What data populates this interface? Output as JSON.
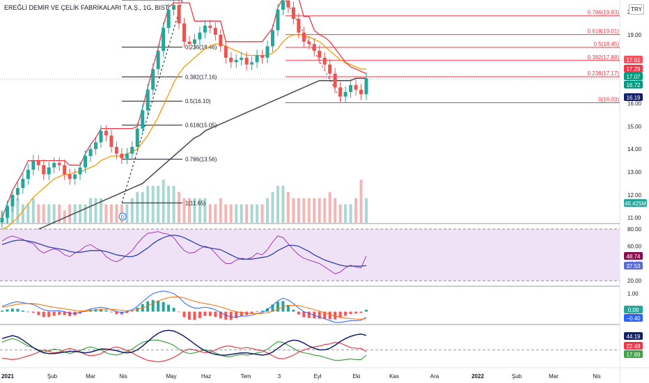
{
  "header": {
    "symbol_title": "EREĞLİ DEMİR VE ÇELİK FABRİKALARI T.A.Ş., 1G, BIST",
    "currency": "TRY"
  },
  "chart_data": {
    "type": "candlestick",
    "price_scale": {
      "ticks": [
        "20.00",
        "19.00",
        "18.00",
        "17.00",
        "16.00",
        "15.00",
        "14.00",
        "13.00",
        "12.00",
        "11.00"
      ],
      "range": [
        10.9,
        20.4
      ]
    },
    "x_axis": {
      "labels": [
        "2021",
        "Şub",
        "Mar",
        "Nis",
        "May",
        "Haz",
        "Tem",
        "3",
        "Eyl",
        "Eki",
        "Kas",
        "Ara",
        "2022",
        "Şub",
        "Mar",
        "Nis"
      ],
      "bold_labels": [
        "2021",
        "2022"
      ]
    },
    "price_badges": [
      {
        "text": "17.61",
        "color": "#f7525f"
      },
      {
        "text": "17.29",
        "color": "#f23645"
      },
      {
        "text": "17.07",
        "color": "#089981"
      },
      {
        "text": "16.72",
        "color": "#089981"
      },
      {
        "text": "16.19",
        "color": "#131f6b"
      }
    ],
    "volume_badge": {
      "text": "46.425M",
      "color": "#26a69a"
    },
    "fib_left": {
      "levels": [
        {
          "label": "0.236(18.46)",
          "value": 18.46
        },
        {
          "label": "0.382(17.16)",
          "value": 17.16
        },
        {
          "label": "0.5(16.10)",
          "value": 16.1
        },
        {
          "label": "0.618(15.05)",
          "value": 15.05
        },
        {
          "label": "0.786(13.56)",
          "value": 13.56
        },
        {
          "label": "1(11.65)",
          "value": 11.65
        }
      ],
      "top_value": 20.52,
      "color": "#131722"
    },
    "fib_right": {
      "levels": [
        {
          "label": "0.786(19.83)",
          "value": 19.83
        },
        {
          "label": "0.618(19.01)",
          "value": 19.01
        },
        {
          "label": "0.5(18.45)",
          "value": 18.45
        },
        {
          "label": "0.382(17.88)",
          "value": 17.88
        },
        {
          "label": "0.236(17.17)",
          "value": 17.17
        },
        {
          "label": "0(16.03)",
          "value": 16.03
        }
      ],
      "color": "#f23645"
    },
    "event_marker": "D",
    "rsi": {
      "ticks": [
        "80.00",
        "60.00",
        "40.00",
        "20.00"
      ],
      "range": [
        16,
        84
      ],
      "levels": [
        80,
        20
      ],
      "badges": [
        {
          "text": "48.74",
          "color": "#880e4f"
        },
        {
          "text": "37.53",
          "color": "#5b6bd6"
        }
      ],
      "line_color": "#9c27b0",
      "ma_color": "#2f3fae",
      "band_color": "#efe2f6"
    },
    "macd": {
      "ticks": [
        "1.00",
        "0.00"
      ],
      "range": [
        -0.6,
        1.3
      ],
      "badges": [
        {
          "text": "0.09",
          "color": "#26a69a"
        },
        {
          "text": "−0.40",
          "color": "#2962ff"
        }
      ],
      "macd_color": "#2962ff",
      "signal_color": "#ff6d00"
    },
    "dmi": {
      "badges": [
        {
          "text": "44.19",
          "color": "#131f6b"
        },
        {
          "text": "22.48",
          "color": "#f23645"
        },
        {
          "text": "17.89",
          "color": "#43a047"
        }
      ],
      "adx_color": "#131f6b",
      "plus_di_color": "#43a047",
      "minus_di_color": "#f23645"
    },
    "colors": {
      "up": "#26a69a",
      "down": "#ef5350",
      "ma_fast": "#ff9800",
      "ma_slow": "#434651",
      "channel": "#f23645",
      "axis_text": "#131722",
      "separator": "#b2b5be"
    },
    "series": [
      {
        "name": "close",
        "values": [
          11.0,
          11.5,
          12.0,
          12.3,
          12.7,
          13.1,
          13.5,
          13.3,
          12.9,
          13.2,
          13.4,
          13.3,
          12.9,
          12.7,
          12.9,
          13.2,
          13.7,
          14.0,
          14.3,
          14.8,
          14.6,
          14.1,
          13.8,
          13.6,
          13.8,
          14.1,
          14.9,
          15.7,
          16.6,
          17.5,
          18.3,
          19.3,
          20.1,
          20.3,
          19.5,
          18.7,
          18.6,
          18.8,
          19.1,
          19.4,
          19.3,
          19.0,
          18.5,
          18.0,
          17.8,
          17.9,
          18.0,
          17.7,
          17.8,
          18.1,
          18.0,
          18.5,
          19.2,
          20.1,
          20.5,
          20.2,
          19.7,
          19.1,
          18.7,
          18.6,
          18.3,
          18.0,
          17.7,
          17.3,
          16.7,
          16.3,
          16.5,
          16.8,
          16.6,
          16.4,
          17.1
        ]
      },
      {
        "name": "ma_fast",
        "values": [
          10.5,
          10.6,
          10.8,
          11.0,
          11.3,
          11.6,
          11.9,
          12.1,
          12.3,
          12.5,
          12.7,
          12.8,
          12.9,
          12.9,
          13.0,
          13.0,
          13.1,
          13.2,
          13.3,
          13.5,
          13.6,
          13.7,
          13.7,
          13.7,
          13.8,
          13.9,
          14.0,
          14.3,
          14.6,
          15.0,
          15.4,
          15.9,
          16.4,
          16.9,
          17.3,
          17.6,
          17.8,
          18.0,
          18.2,
          18.4,
          18.5,
          18.6,
          18.6,
          18.5,
          18.4,
          18.3,
          18.2,
          18.1,
          18.1,
          18.1,
          18.1,
          18.1,
          18.2,
          18.4,
          18.7,
          18.9,
          19.0,
          19.0,
          19.0,
          18.9,
          18.8,
          18.7,
          18.5,
          18.3,
          18.1,
          17.9,
          17.8,
          17.7,
          17.6,
          17.5,
          17.5
        ]
      },
      {
        "name": "ma_slow",
        "values": [
          9.8,
          9.9,
          10.0,
          10.1,
          10.2,
          10.3,
          10.4,
          10.5,
          10.6,
          10.7,
          10.8,
          10.9,
          11.0,
          11.1,
          11.2,
          11.3,
          11.4,
          11.5,
          11.6,
          11.7,
          11.8,
          11.9,
          12.0,
          12.1,
          12.2,
          12.3,
          12.4,
          12.5,
          12.7,
          12.9,
          13.1,
          13.3,
          13.5,
          13.7,
          13.9,
          14.1,
          14.3,
          14.5,
          14.6,
          14.8,
          14.9,
          15.0,
          15.1,
          15.2,
          15.3,
          15.4,
          15.5,
          15.6,
          15.7,
          15.8,
          15.9,
          16.0,
          16.1,
          16.2,
          16.3,
          16.4,
          16.5,
          16.6,
          16.7,
          16.8,
          16.9,
          17.0,
          17.0,
          17.0,
          17.0,
          17.0,
          17.0,
          17.0,
          17.1,
          17.1,
          17.1
        ]
      },
      {
        "name": "channel",
        "values": [
          11.0,
          11.6,
          12.2,
          12.6,
          13.0,
          13.5,
          13.5,
          13.5,
          13.5,
          13.5,
          13.5,
          13.5,
          13.5,
          13.3,
          13.3,
          13.3,
          13.8,
          14.2,
          14.5,
          14.9,
          14.9,
          14.9,
          14.9,
          14.9,
          14.9,
          14.9,
          15.0,
          15.8,
          16.7,
          17.6,
          18.4,
          19.4,
          20.2,
          20.4,
          20.4,
          20.4,
          20.4,
          19.6,
          19.6,
          19.6,
          19.6,
          19.6,
          19.6,
          18.7,
          18.7,
          18.7,
          18.7,
          18.7,
          18.7,
          18.7,
          18.7,
          19.0,
          19.3,
          20.2,
          20.6,
          20.6,
          20.6,
          20.6,
          19.8,
          19.8,
          19.2,
          19.0,
          18.9,
          18.7,
          18.4,
          18.1,
          17.8,
          17.6,
          17.5,
          17.4,
          17.3
        ]
      },
      {
        "name": "volume",
        "values": [
          2,
          3,
          3,
          4,
          3,
          3,
          4,
          3,
          3,
          3,
          3,
          3,
          2,
          3,
          3,
          3,
          3,
          4,
          4,
          4,
          3,
          3,
          3,
          3,
          3,
          4,
          5,
          5,
          6,
          6,
          6,
          7,
          6,
          6,
          5,
          4,
          4,
          4,
          4,
          4,
          3,
          3,
          4,
          3,
          3,
          3,
          3,
          3,
          3,
          3,
          3,
          4,
          5,
          6,
          6,
          5,
          4,
          4,
          4,
          4,
          4,
          4,
          4,
          5,
          4,
          3,
          3,
          3,
          4,
          7,
          4
        ]
      },
      {
        "name": "rsi",
        "values": [
          66,
          70,
          72,
          70,
          68,
          65,
          63,
          56,
          52,
          55,
          57,
          55,
          50,
          48,
          52,
          55,
          60,
          62,
          58,
          55,
          48,
          44,
          42,
          45,
          50,
          55,
          63,
          70,
          75,
          76,
          77,
          75,
          74,
          70,
          62,
          55,
          52,
          53,
          57,
          60,
          58,
          52,
          45,
          40,
          40,
          44,
          46,
          45,
          47,
          52,
          50,
          56,
          65,
          72,
          70,
          63,
          56,
          50,
          46,
          44,
          42,
          40,
          36,
          32,
          28,
          30,
          35,
          38,
          36,
          35,
          48.7
        ]
      },
      {
        "name": "rsi_ma",
        "values": [
          62,
          64,
          66,
          67,
          67,
          66,
          65,
          63,
          61,
          59,
          58,
          57,
          56,
          54,
          53,
          53,
          54,
          55,
          55,
          55,
          54,
          52,
          50,
          49,
          48,
          48,
          50,
          54,
          58,
          63,
          67,
          70,
          72,
          73,
          72,
          70,
          67,
          64,
          61,
          59,
          58,
          57,
          56,
          53,
          50,
          47,
          45,
          45,
          45,
          46,
          47,
          48,
          51,
          55,
          58,
          61,
          61,
          60,
          57,
          54,
          50,
          47,
          44,
          42,
          40,
          38,
          37,
          37,
          37,
          37,
          37.5
        ]
      },
      {
        "name": "macd",
        "values": [
          0.3,
          0.4,
          0.5,
          0.55,
          0.5,
          0.45,
          0.4,
          0.25,
          0.1,
          0.05,
          0.05,
          0.05,
          0.0,
          -0.1,
          -0.1,
          -0.05,
          0.05,
          0.15,
          0.2,
          0.25,
          0.2,
          0.1,
          0.0,
          -0.05,
          0.0,
          0.1,
          0.3,
          0.55,
          0.8,
          1.0,
          1.1,
          1.15,
          1.1,
          1.0,
          0.8,
          0.5,
          0.3,
          0.2,
          0.2,
          0.25,
          0.2,
          0.1,
          -0.05,
          -0.2,
          -0.3,
          -0.3,
          -0.25,
          -0.25,
          -0.2,
          -0.1,
          -0.05,
          0.1,
          0.35,
          0.6,
          0.75,
          0.65,
          0.45,
          0.2,
          0.0,
          -0.1,
          -0.2,
          -0.3,
          -0.4,
          -0.5,
          -0.6,
          -0.6,
          -0.55,
          -0.5,
          -0.5,
          -0.48,
          -0.31
        ]
      },
      {
        "name": "signal",
        "values": [
          0.25,
          0.3,
          0.36,
          0.42,
          0.45,
          0.46,
          0.45,
          0.41,
          0.35,
          0.29,
          0.24,
          0.2,
          0.16,
          0.11,
          0.07,
          0.04,
          0.04,
          0.06,
          0.09,
          0.12,
          0.14,
          0.13,
          0.11,
          0.08,
          0.06,
          0.07,
          0.12,
          0.2,
          0.32,
          0.46,
          0.59,
          0.7,
          0.78,
          0.82,
          0.82,
          0.76,
          0.67,
          0.58,
          0.5,
          0.45,
          0.4,
          0.34,
          0.26,
          0.17,
          0.08,
          0.0,
          -0.05,
          -0.09,
          -0.11,
          -0.11,
          -0.1,
          -0.06,
          0.02,
          0.14,
          0.26,
          0.34,
          0.36,
          0.33,
          0.26,
          0.19,
          0.11,
          0.03,
          -0.06,
          -0.15,
          -0.24,
          -0.31,
          -0.36,
          -0.39,
          -0.41,
          -0.42,
          -0.4
        ]
      },
      {
        "name": "adx",
        "values": [
          40,
          42,
          44,
          42,
          38,
          33,
          28,
          24,
          21,
          20,
          20,
          21,
          22,
          23,
          23,
          22,
          21,
          22,
          24,
          26,
          26,
          25,
          24,
          22,
          21,
          22,
          25,
          30,
          36,
          42,
          47,
          50,
          51,
          50,
          47,
          43,
          38,
          33,
          28,
          24,
          21,
          19,
          18,
          18,
          19,
          20,
          21,
          21,
          20,
          19,
          18,
          19,
          22,
          27,
          32,
          36,
          38,
          37,
          34,
          30,
          27,
          25,
          25,
          27,
          31,
          36,
          40,
          43,
          45,
          46,
          44.2
        ]
      },
      {
        "name": "plus_di",
        "values": [
          35,
          38,
          40,
          38,
          34,
          30,
          28,
          25,
          22,
          24,
          26,
          25,
          22,
          20,
          22,
          24,
          27,
          29,
          27,
          25,
          21,
          19,
          18,
          20,
          23,
          26,
          31,
          35,
          37,
          38,
          38,
          36,
          34,
          31,
          26,
          22,
          20,
          21,
          23,
          25,
          24,
          21,
          18,
          16,
          16,
          18,
          19,
          18,
          19,
          21,
          22,
          26,
          31,
          36,
          35,
          31,
          27,
          23,
          21,
          20,
          18,
          17,
          15,
          13,
          11,
          11,
          12,
          13,
          12,
          12,
          17.9
        ]
      },
      {
        "name": "minus_di",
        "values": [
          14,
          13,
          12,
          13,
          15,
          17,
          19,
          22,
          25,
          23,
          21,
          22,
          25,
          27,
          25,
          22,
          19,
          17,
          18,
          20,
          24,
          27,
          29,
          27,
          24,
          21,
          17,
          14,
          11,
          10,
          9,
          10,
          12,
          15,
          19,
          24,
          26,
          25,
          23,
          21,
          22,
          25,
          28,
          30,
          30,
          28,
          27,
          28,
          27,
          25,
          24,
          21,
          17,
          14,
          13,
          15,
          18,
          22,
          25,
          27,
          29,
          30,
          32,
          33,
          35,
          34,
          31,
          28,
          27,
          27,
          22.5
        ]
      }
    ]
  }
}
